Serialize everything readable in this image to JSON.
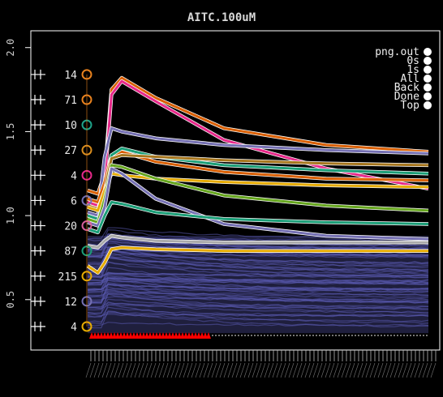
{
  "chart_data": {
    "type": "line",
    "title": "AITC.100uM",
    "xlabel": "",
    "ylabel": "",
    "ylim": [
      0.2,
      2.1
    ],
    "yticks": [
      0.5,
      1.0,
      1.5,
      2.0
    ],
    "ytick_labels": [
      "0.5",
      "1.0",
      "1.5",
      "2.0"
    ],
    "background": "#000000",
    "axis_color": "#ffffff",
    "trace_bulk_color": "#5a5ab0",
    "legend_position": "top-right",
    "legend_items": [
      "png.out",
      "0s",
      "1s",
      "All",
      "Back",
      "Done",
      "Top"
    ],
    "stimulus_marker_color": "#ff0000",
    "cluster_labels": [
      {
        "count": "14",
        "y": 1.84,
        "color": "#e8821e"
      },
      {
        "count": "71",
        "y": 1.69,
        "color": "#e8821e"
      },
      {
        "count": "10",
        "y": 1.54,
        "color": "#1fa389"
      },
      {
        "count": "27",
        "y": 1.39,
        "color": "#d98d1e"
      },
      {
        "count": "4",
        "y": 1.24,
        "color": "#e7298a"
      },
      {
        "count": "6",
        "y": 1.09,
        "color": "#7570b3"
      },
      {
        "count": "20",
        "y": 0.94,
        "color": "#d95f9b"
      },
      {
        "count": "87",
        "y": 0.79,
        "color": "#1b9e77"
      },
      {
        "count": "215",
        "y": 0.64,
        "color": "#e6ab02"
      },
      {
        "count": "12",
        "y": 0.49,
        "color": "#7570b3"
      },
      {
        "count": "4",
        "y": 0.34,
        "color": "#e6ab02"
      }
    ],
    "series": [
      {
        "color": "#d95f02",
        "x": [
          0,
          3,
          5,
          7,
          10,
          20,
          40,
          70,
          100
        ],
        "y": [
          1.15,
          1.13,
          1.25,
          1.75,
          1.82,
          1.7,
          1.52,
          1.42,
          1.38
        ]
      },
      {
        "color": "#e7298a",
        "x": [
          0,
          3,
          5,
          7,
          10,
          20,
          40,
          70,
          100
        ],
        "y": [
          1.08,
          1.06,
          1.2,
          1.72,
          1.8,
          1.68,
          1.45,
          1.28,
          1.16
        ]
      },
      {
        "color": "#7570b3",
        "x": [
          0,
          3,
          5,
          7,
          10,
          20,
          40,
          70,
          100
        ],
        "y": [
          1.02,
          1.0,
          1.35,
          1.52,
          1.5,
          1.46,
          1.42,
          1.39,
          1.37
        ]
      },
      {
        "color": "#d95f02",
        "x": [
          0,
          3,
          5,
          7,
          10,
          20,
          40,
          70,
          100
        ],
        "y": [
          1.1,
          1.08,
          1.2,
          1.36,
          1.38,
          1.32,
          1.26,
          1.22,
          1.21
        ]
      },
      {
        "color": "#1b9e77",
        "x": [
          0,
          3,
          5,
          7,
          10,
          20,
          40,
          70,
          100
        ],
        "y": [
          1.0,
          0.98,
          1.1,
          1.36,
          1.4,
          1.35,
          1.3,
          1.27,
          1.25
        ]
      },
      {
        "color": "#a6761d",
        "x": [
          0,
          3,
          5,
          7,
          10,
          20,
          40,
          70,
          100
        ],
        "y": [
          1.06,
          1.04,
          1.15,
          1.34,
          1.36,
          1.35,
          1.33,
          1.31,
          1.3
        ]
      },
      {
        "color": "#e6ab02",
        "x": [
          0,
          3,
          5,
          7,
          10,
          20,
          40,
          70,
          100
        ],
        "y": [
          1.05,
          1.03,
          1.15,
          1.25,
          1.24,
          1.22,
          1.2,
          1.18,
          1.17
        ]
      },
      {
        "color": "#66a61e",
        "x": [
          0,
          3,
          5,
          7,
          10,
          20,
          40,
          70,
          100
        ],
        "y": [
          0.98,
          0.96,
          1.1,
          1.3,
          1.29,
          1.22,
          1.12,
          1.06,
          1.03
        ]
      },
      {
        "color": "#7570b3",
        "x": [
          0,
          3,
          5,
          7,
          10,
          20,
          40,
          70,
          100
        ],
        "y": [
          0.96,
          0.94,
          1.05,
          1.28,
          1.25,
          1.1,
          0.95,
          0.88,
          0.86
        ]
      },
      {
        "color": "#1b9e77",
        "x": [
          0,
          3,
          5,
          7,
          10,
          20,
          40,
          70,
          100
        ],
        "y": [
          0.92,
          0.9,
          1.0,
          1.08,
          1.07,
          1.02,
          0.98,
          0.96,
          0.95
        ]
      },
      {
        "color": "#aaaaaa",
        "x": [
          0,
          3,
          5,
          7,
          10,
          20,
          40,
          70,
          100
        ],
        "y": [
          0.82,
          0.81,
          0.85,
          0.88,
          0.87,
          0.85,
          0.84,
          0.84,
          0.84
        ]
      },
      {
        "color": "#e6ab02",
        "x": [
          0,
          3,
          5,
          7,
          10,
          20,
          40,
          70,
          100
        ],
        "y": [
          0.7,
          0.66,
          0.72,
          0.8,
          0.81,
          0.8,
          0.79,
          0.79,
          0.79
        ]
      }
    ]
  }
}
